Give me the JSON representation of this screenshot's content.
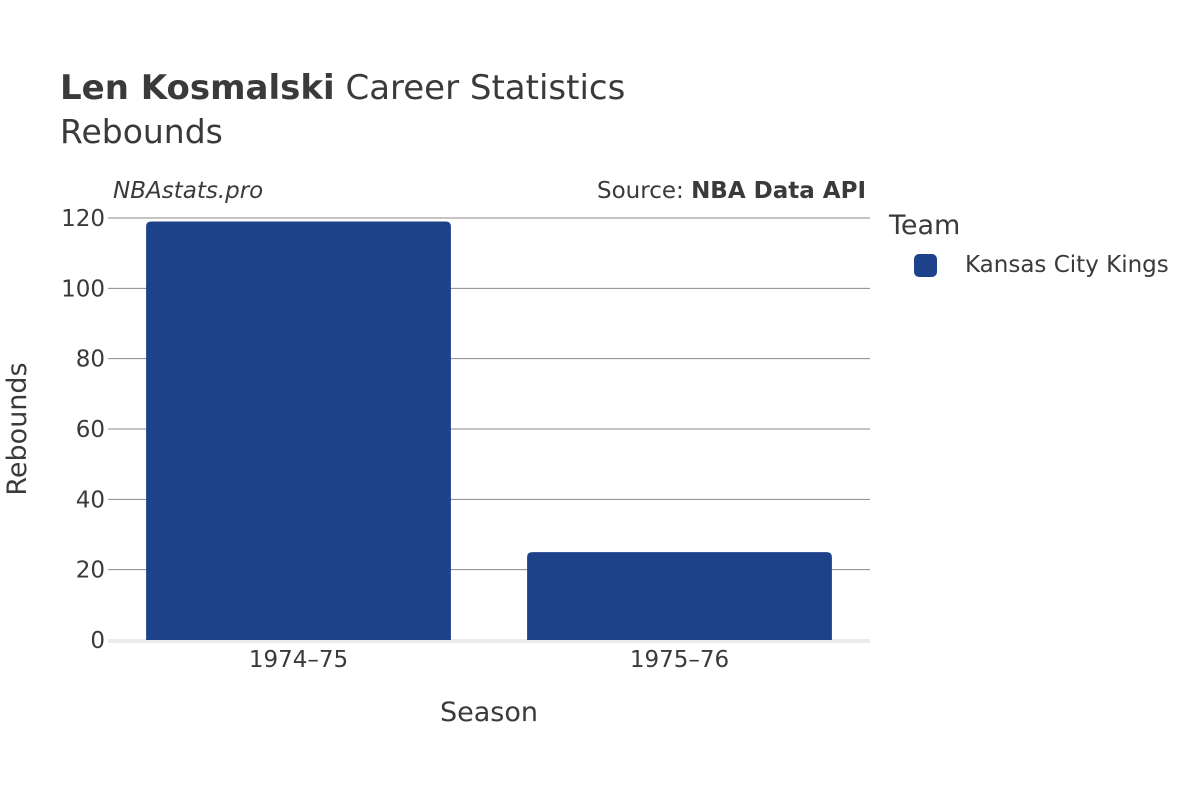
{
  "header": {
    "title_bold": "Len Kosmalski",
    "title_rest": " Career Statistics",
    "subtitle": "Rebounds"
  },
  "watermark": "NBAstats.pro",
  "source": {
    "prefix": "Source: ",
    "name": "NBA Data API"
  },
  "legend": {
    "title": "Team",
    "items": [
      {
        "label": "Kansas City Kings",
        "color": "#1d4289"
      }
    ]
  },
  "chart_data": {
    "type": "bar",
    "categories": [
      "1974–75",
      "1975–76"
    ],
    "series": [
      {
        "name": "Kansas City Kings",
        "values": [
          119,
          25
        ],
        "color": "#1d4289"
      }
    ],
    "xlabel": "Season",
    "ylabel": "Rebounds",
    "ylim": [
      0,
      120
    ],
    "yticks": [
      0,
      20,
      40,
      60,
      80,
      100,
      120
    ],
    "grid": true,
    "legend_position": "right"
  }
}
